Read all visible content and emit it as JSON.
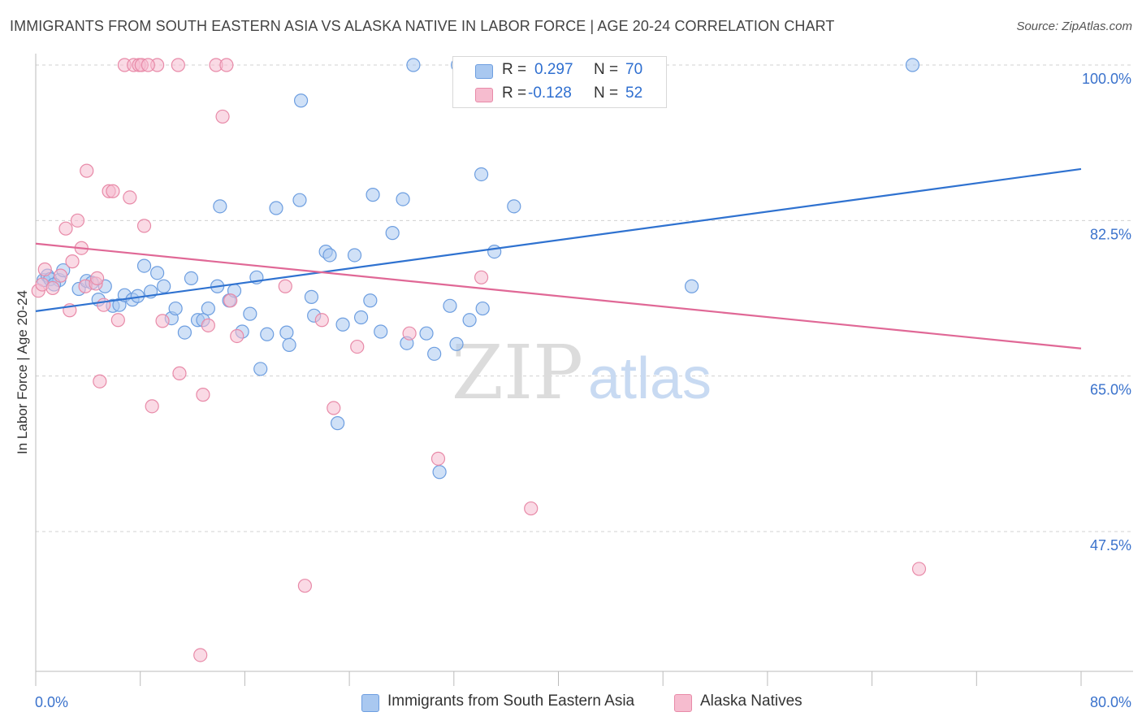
{
  "header": {
    "title": "IMMIGRANTS FROM SOUTH EASTERN ASIA VS ALASKA NATIVE IN LABOR FORCE | AGE 20-24 CORRELATION CHART",
    "source": "Source: ZipAtlas.com"
  },
  "watermark": {
    "zip": "ZIP",
    "atlas": "atlas"
  },
  "legend": {
    "r_label": "R =",
    "n_label": "N =",
    "series_a": {
      "r": "0.297",
      "n": "70"
    },
    "series_b": {
      "r": "-0.128",
      "n": "52"
    }
  },
  "colors": {
    "blue_fill": "#a9c8f0",
    "blue_stroke": "#6d9ee0",
    "blue_line": "#2f72d0",
    "pink_fill": "#f6bccf",
    "pink_stroke": "#e88aa8",
    "pink_line": "#e06896",
    "axis_text": "#3a72cc",
    "grid": "#d0d0d0"
  },
  "chart_data": {
    "type": "scatter",
    "title": "IMMIGRANTS FROM SOUTH EASTERN ASIA VS ALASKA NATIVE IN LABOR FORCE | AGE 20-24 CORRELATION CHART",
    "xlabel": "",
    "ylabel": "In Labor Force | Age 20-24",
    "xlim": [
      0,
      80
    ],
    "ylim": [
      30,
      102
    ],
    "x_tick_labels": [
      "0.0%",
      "80.0%"
    ],
    "y_tick_labels": [
      "100.0%",
      "82.5%",
      "65.0%",
      "47.5%"
    ],
    "y_ticks": [
      100,
      82.5,
      65,
      47.5
    ],
    "grid": "horizontal dashed",
    "legend_position": "top-center",
    "series": [
      {
        "name": "Immigrants from South Eastern Asia",
        "color": "#a9c8f0",
        "r": 0.297,
        "n": 70,
        "trend": [
          [
            0,
            72.3
          ],
          [
            80,
            88.3
          ]
        ],
        "points": [
          [
            0.6,
            75.8
          ],
          [
            0.9,
            76.3
          ],
          [
            1.1,
            75.9
          ],
          [
            1.8,
            75.8
          ],
          [
            2.1,
            76.9
          ],
          [
            3.3,
            74.8
          ],
          [
            3.9,
            75.7
          ],
          [
            4.3,
            75.5
          ],
          [
            4.8,
            73.6
          ],
          [
            5.3,
            75.1
          ],
          [
            5.9,
            72.9
          ],
          [
            6.4,
            73.0
          ],
          [
            6.8,
            74.1
          ],
          [
            7.4,
            73.6
          ],
          [
            7.8,
            74.0
          ],
          [
            8.3,
            77.4
          ],
          [
            8.8,
            74.5
          ],
          [
            9.3,
            76.6
          ],
          [
            9.8,
            75.1
          ],
          [
            10.4,
            71.5
          ],
          [
            10.7,
            72.6
          ],
          [
            11.4,
            69.9
          ],
          [
            11.9,
            76.0
          ],
          [
            12.4,
            71.3
          ],
          [
            12.8,
            71.3
          ],
          [
            13.2,
            72.6
          ],
          [
            13.9,
            75.1
          ],
          [
            14.1,
            84.1
          ],
          [
            14.8,
            73.5
          ],
          [
            15.2,
            74.6
          ],
          [
            15.8,
            70.0
          ],
          [
            16.4,
            72.0
          ],
          [
            16.9,
            76.1
          ],
          [
            17.2,
            65.8
          ],
          [
            17.7,
            69.7
          ],
          [
            18.4,
            83.9
          ],
          [
            19.2,
            69.9
          ],
          [
            19.4,
            68.5
          ],
          [
            20.2,
            84.8
          ],
          [
            20.3,
            96.0
          ],
          [
            21.1,
            73.9
          ],
          [
            21.3,
            71.8
          ],
          [
            22.2,
            79.0
          ],
          [
            22.5,
            78.6
          ],
          [
            23.1,
            59.7
          ],
          [
            23.5,
            70.8
          ],
          [
            24.4,
            78.6
          ],
          [
            24.9,
            71.6
          ],
          [
            25.6,
            73.5
          ],
          [
            25.8,
            85.4
          ],
          [
            26.4,
            70.0
          ],
          [
            27.3,
            81.1
          ],
          [
            28.1,
            84.9
          ],
          [
            28.4,
            68.7
          ],
          [
            28.9,
            100.0
          ],
          [
            29.9,
            69.8
          ],
          [
            30.5,
            67.5
          ],
          [
            30.9,
            54.2
          ],
          [
            31.7,
            72.9
          ],
          [
            32.2,
            68.6
          ],
          [
            32.3,
            100.0
          ],
          [
            33.2,
            71.3
          ],
          [
            33.6,
            100.0
          ],
          [
            34.1,
            87.7
          ],
          [
            34.2,
            72.6
          ],
          [
            35.1,
            79.0
          ],
          [
            36.6,
            84.1
          ],
          [
            50.2,
            75.1
          ],
          [
            67.1,
            100.0
          ],
          [
            1.4,
            75.3
          ]
        ]
      },
      {
        "name": "Alaska Natives",
        "color": "#f6bccf",
        "r": -0.128,
        "n": 52,
        "trend": [
          [
            0,
            79.9
          ],
          [
            80,
            68.1
          ]
        ],
        "points": [
          [
            0.2,
            74.6
          ],
          [
            0.5,
            75.3
          ],
          [
            0.7,
            77.0
          ],
          [
            1.3,
            74.9
          ],
          [
            1.9,
            76.3
          ],
          [
            2.3,
            81.6
          ],
          [
            2.6,
            72.4
          ],
          [
            2.8,
            77.9
          ],
          [
            3.2,
            82.5
          ],
          [
            3.5,
            79.4
          ],
          [
            3.8,
            75.1
          ],
          [
            3.9,
            88.1
          ],
          [
            4.6,
            75.4
          ],
          [
            4.7,
            76.0
          ],
          [
            4.9,
            64.4
          ],
          [
            5.2,
            73.0
          ],
          [
            5.6,
            85.8
          ],
          [
            5.9,
            85.8
          ],
          [
            6.3,
            71.3
          ],
          [
            6.8,
            100.0
          ],
          [
            7.2,
            85.1
          ],
          [
            7.5,
            100.0
          ],
          [
            7.9,
            100.0
          ],
          [
            8.1,
            100.0
          ],
          [
            8.3,
            81.9
          ],
          [
            8.9,
            61.6
          ],
          [
            9.3,
            100.0
          ],
          [
            9.7,
            71.2
          ],
          [
            10.9,
            100.0
          ],
          [
            11.0,
            65.3
          ],
          [
            12.8,
            62.9
          ],
          [
            13.2,
            70.7
          ],
          [
            13.8,
            100.0
          ],
          [
            14.3,
            94.2
          ],
          [
            14.6,
            100.0
          ],
          [
            14.9,
            73.5
          ],
          [
            15.4,
            69.5
          ],
          [
            19.1,
            75.1
          ],
          [
            20.6,
            41.4
          ],
          [
            21.9,
            71.3
          ],
          [
            22.8,
            61.4
          ],
          [
            24.6,
            68.3
          ],
          [
            28.6,
            69.8
          ],
          [
            30.8,
            55.7
          ],
          [
            34.1,
            76.1
          ],
          [
            37.9,
            50.1
          ],
          [
            38.1,
            100.0
          ],
          [
            39.3,
            100.0
          ],
          [
            40.3,
            100.0
          ],
          [
            67.6,
            43.3
          ],
          [
            12.6,
            33.6
          ],
          [
            8.6,
            100.0
          ]
        ]
      }
    ]
  },
  "bottom_legend": {
    "item_a": "Immigrants from South Eastern Asia",
    "item_b": "Alaska Natives"
  }
}
